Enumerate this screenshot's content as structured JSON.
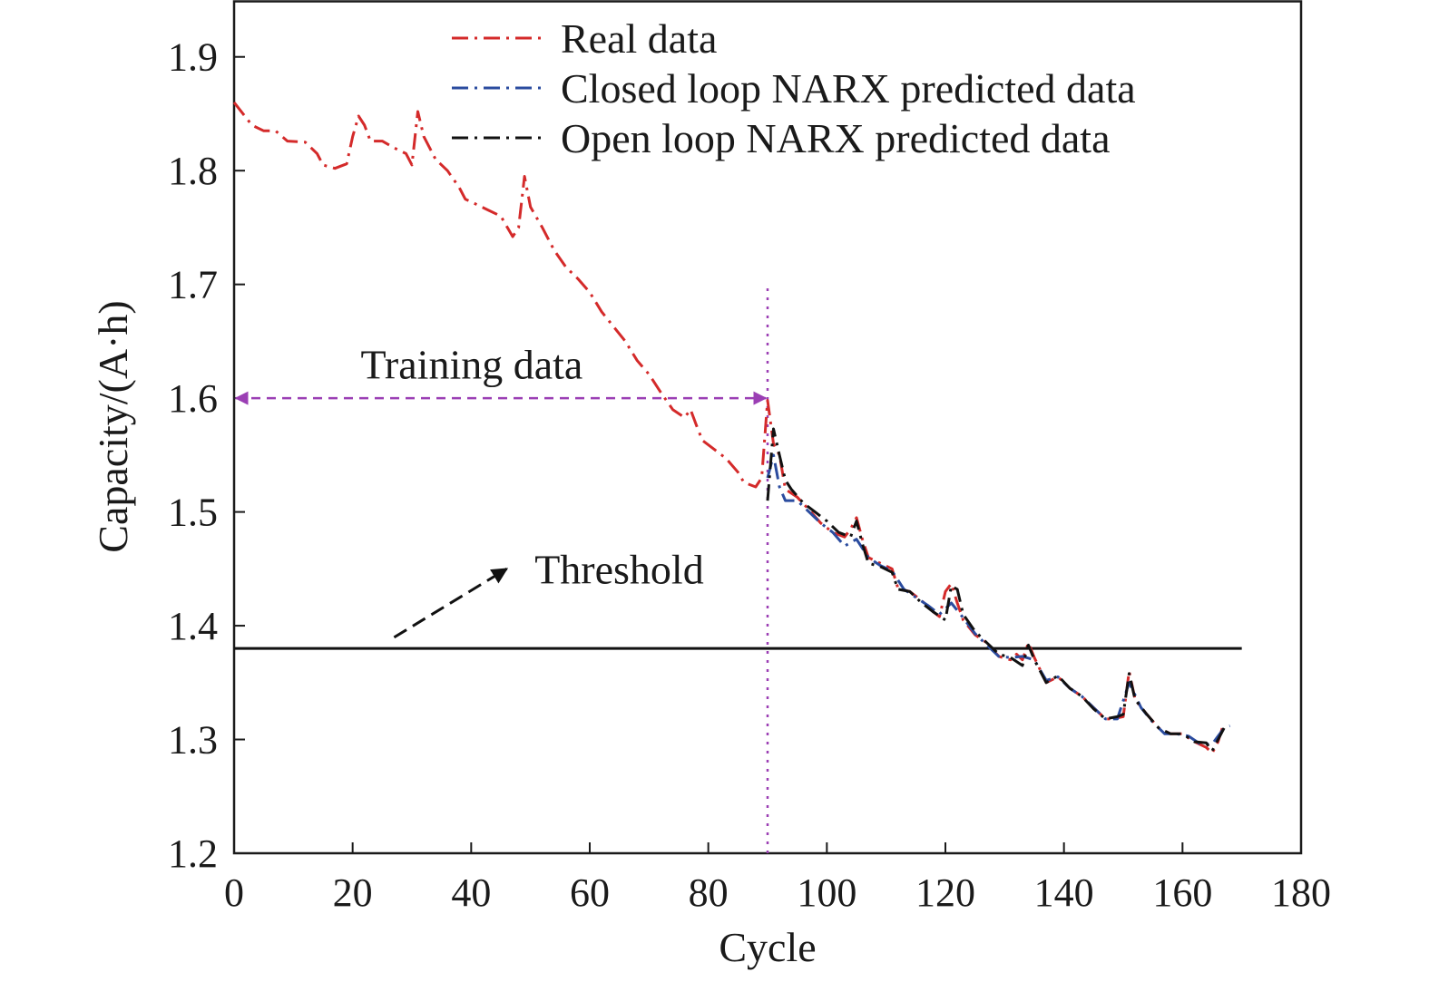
{
  "chart_data": {
    "type": "line",
    "xlabel": "Cycle",
    "ylabel": "Capacity/(A·h)",
    "xlim": [
      0,
      180
    ],
    "ylim": [
      1.2,
      1.95
    ],
    "xticks": [
      0,
      20,
      40,
      60,
      80,
      100,
      120,
      140,
      160,
      180
    ],
    "xtick_labels": [
      "0",
      "20",
      "40",
      "60",
      "80",
      "100",
      "120",
      "140",
      "160",
      "180"
    ],
    "yticks": [
      1.2,
      1.3,
      1.4,
      1.5,
      1.6,
      1.7,
      1.8,
      1.9
    ],
    "ytick_labels": [
      "1.2",
      "1.3",
      "1.4",
      "1.5",
      "1.6",
      "1.7",
      "1.8",
      "1.9"
    ],
    "grid": false,
    "legend_position": "top-center",
    "series": [
      {
        "name": "Real data",
        "color": "#d42a2a",
        "dash": "dash-dot",
        "points": [
          [
            0,
            1.86
          ],
          [
            3,
            1.84
          ],
          [
            5,
            1.835
          ],
          [
            7,
            1.835
          ],
          [
            9,
            1.826
          ],
          [
            12,
            1.825
          ],
          [
            14,
            1.815
          ],
          [
            15,
            1.805
          ],
          [
            17,
            1.802
          ],
          [
            19,
            1.806
          ],
          [
            20,
            1.83
          ],
          [
            21,
            1.848
          ],
          [
            22,
            1.84
          ],
          [
            23,
            1.826
          ],
          [
            25,
            1.826
          ],
          [
            27,
            1.82
          ],
          [
            29,
            1.815
          ],
          [
            30,
            1.805
          ],
          [
            31,
            1.852
          ],
          [
            32,
            1.83
          ],
          [
            34,
            1.81
          ],
          [
            36,
            1.8
          ],
          [
            38,
            1.785
          ],
          [
            39,
            1.775
          ],
          [
            41,
            1.77
          ],
          [
            43,
            1.765
          ],
          [
            45,
            1.76
          ],
          [
            47,
            1.742
          ],
          [
            48,
            1.75
          ],
          [
            49,
            1.795
          ],
          [
            50,
            1.768
          ],
          [
            52,
            1.75
          ],
          [
            54,
            1.73
          ],
          [
            56,
            1.715
          ],
          [
            58,
            1.705
          ],
          [
            60,
            1.693
          ],
          [
            62,
            1.676
          ],
          [
            64,
            1.663
          ],
          [
            66,
            1.65
          ],
          [
            68,
            1.633
          ],
          [
            70,
            1.621
          ],
          [
            72,
            1.605
          ],
          [
            74,
            1.59
          ],
          [
            76,
            1.583
          ],
          [
            77,
            1.59
          ],
          [
            78,
            1.576
          ],
          [
            79,
            1.563
          ],
          [
            81,
            1.555
          ],
          [
            83,
            1.547
          ],
          [
            85,
            1.535
          ],
          [
            86,
            1.526
          ],
          [
            88,
            1.522
          ],
          [
            89,
            1.53
          ],
          [
            90,
            1.598
          ],
          [
            91,
            1.56
          ],
          [
            92,
            1.55
          ],
          [
            93,
            1.52
          ],
          [
            95,
            1.513
          ],
          [
            97,
            1.502
          ],
          [
            99,
            1.49
          ],
          [
            101,
            1.482
          ],
          [
            103,
            1.478
          ],
          [
            104,
            1.485
          ],
          [
            105,
            1.495
          ],
          [
            106,
            1.476
          ],
          [
            107,
            1.46
          ],
          [
            109,
            1.455
          ],
          [
            111,
            1.45
          ],
          [
            112,
            1.433
          ],
          [
            114,
            1.43
          ],
          [
            116,
            1.422
          ],
          [
            118,
            1.412
          ],
          [
            119,
            1.408
          ],
          [
            120,
            1.43
          ],
          [
            121,
            1.437
          ],
          [
            122,
            1.42
          ],
          [
            123,
            1.405
          ],
          [
            125,
            1.392
          ],
          [
            127,
            1.385
          ],
          [
            129,
            1.373
          ],
          [
            131,
            1.37
          ],
          [
            132,
            1.375
          ],
          [
            133,
            1.37
          ],
          [
            134,
            1.385
          ],
          [
            135,
            1.372
          ],
          [
            137,
            1.35
          ],
          [
            139,
            1.355
          ],
          [
            141,
            1.345
          ],
          [
            143,
            1.338
          ],
          [
            145,
            1.328
          ],
          [
            147,
            1.318
          ],
          [
            148,
            1.318
          ],
          [
            150,
            1.32
          ],
          [
            151,
            1.36
          ],
          [
            152,
            1.335
          ],
          [
            154,
            1.322
          ],
          [
            156,
            1.31
          ],
          [
            158,
            1.305
          ],
          [
            160,
            1.305
          ],
          [
            162,
            1.298
          ],
          [
            164,
            1.293
          ],
          [
            165,
            1.288
          ],
          [
            166,
            1.298
          ],
          [
            167,
            1.315
          ]
        ]
      },
      {
        "name": "Closed loop NARX predicted data",
        "color": "#2b4c9f",
        "dash": "dash-dot",
        "points": [
          [
            90,
            1.53
          ],
          [
            91,
            1.55
          ],
          [
            92,
            1.522
          ],
          [
            93,
            1.51
          ],
          [
            95,
            1.51
          ],
          [
            97,
            1.5
          ],
          [
            99,
            1.49
          ],
          [
            101,
            1.482
          ],
          [
            103,
            1.47
          ],
          [
            105,
            1.476
          ],
          [
            107,
            1.46
          ],
          [
            109,
            1.453
          ],
          [
            111,
            1.448
          ],
          [
            113,
            1.432
          ],
          [
            115,
            1.425
          ],
          [
            117,
            1.418
          ],
          [
            119,
            1.41
          ],
          [
            121,
            1.42
          ],
          [
            123,
            1.407
          ],
          [
            125,
            1.393
          ],
          [
            127,
            1.383
          ],
          [
            129,
            1.373
          ],
          [
            131,
            1.372
          ],
          [
            133,
            1.373
          ],
          [
            135,
            1.37
          ],
          [
            137,
            1.352
          ],
          [
            139,
            1.355
          ],
          [
            141,
            1.345
          ],
          [
            143,
            1.338
          ],
          [
            145,
            1.328
          ],
          [
            147,
            1.318
          ],
          [
            149,
            1.318
          ],
          [
            151,
            1.35
          ],
          [
            153,
            1.328
          ],
          [
            155,
            1.315
          ],
          [
            157,
            1.305
          ],
          [
            159,
            1.305
          ],
          [
            161,
            1.303
          ],
          [
            163,
            1.296
          ],
          [
            165,
            1.296
          ],
          [
            167,
            1.31
          ],
          [
            168,
            1.312
          ]
        ]
      },
      {
        "name": "Open loop NARX predicted data",
        "color": "#111111",
        "dash": "dash-dot",
        "points": [
          [
            90,
            1.51
          ],
          [
            91,
            1.573
          ],
          [
            92,
            1.55
          ],
          [
            93,
            1.528
          ],
          [
            94,
            1.52
          ],
          [
            96,
            1.508
          ],
          [
            98,
            1.5
          ],
          [
            100,
            1.492
          ],
          [
            102,
            1.482
          ],
          [
            104,
            1.478
          ],
          [
            105,
            1.492
          ],
          [
            106,
            1.472
          ],
          [
            107,
            1.455
          ],
          [
            109,
            1.452
          ],
          [
            111,
            1.447
          ],
          [
            112,
            1.432
          ],
          [
            114,
            1.43
          ],
          [
            116,
            1.42
          ],
          [
            118,
            1.412
          ],
          [
            120,
            1.405
          ],
          [
            121,
            1.435
          ],
          [
            122,
            1.432
          ],
          [
            123,
            1.41
          ],
          [
            125,
            1.395
          ],
          [
            127,
            1.385
          ],
          [
            129,
            1.375
          ],
          [
            131,
            1.372
          ],
          [
            133,
            1.365
          ],
          [
            134,
            1.383
          ],
          [
            135,
            1.37
          ],
          [
            137,
            1.35
          ],
          [
            139,
            1.356
          ],
          [
            141,
            1.345
          ],
          [
            143,
            1.338
          ],
          [
            145,
            1.327
          ],
          [
            147,
            1.318
          ],
          [
            149,
            1.32
          ],
          [
            150,
            1.322
          ],
          [
            151,
            1.358
          ],
          [
            152,
            1.335
          ],
          [
            154,
            1.322
          ],
          [
            156,
            1.31
          ],
          [
            158,
            1.305
          ],
          [
            160,
            1.305
          ],
          [
            162,
            1.298
          ],
          [
            164,
            1.297
          ],
          [
            165,
            1.29
          ],
          [
            167,
            1.31
          ]
        ]
      }
    ],
    "threshold": {
      "y": 1.38,
      "x_start": 0,
      "x_end": 170,
      "color": "#111111"
    },
    "split_line": {
      "x": 90,
      "y_max": 1.7,
      "color": "#9b3fb4"
    },
    "annotations": [
      {
        "text": "Training data",
        "x": 44,
        "y": 1.63
      },
      {
        "text": "Threshold",
        "x": 66,
        "y": 1.45
      }
    ],
    "training_arrow": {
      "x_start": 0,
      "x_end": 90,
      "y": 1.6,
      "color": "#9b3fb4"
    },
    "threshold_arrow": {
      "x_start": 27,
      "y_start": 1.385,
      "x_end": 46,
      "y_end": 1.45,
      "color": "#111111"
    }
  }
}
